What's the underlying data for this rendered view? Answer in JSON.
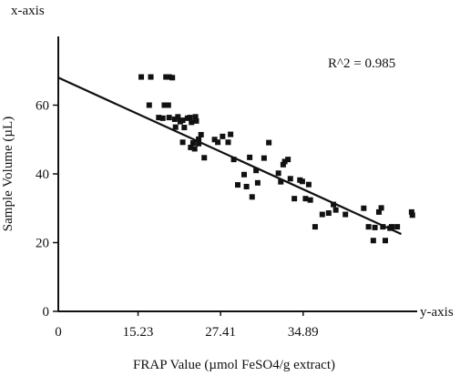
{
  "chart_data": {
    "type": "scatter",
    "title": "",
    "xlabel": "FRAP Value (µmol FeSO4/g extract)",
    "ylabel": "Sample Volume (µL)",
    "x_corner_label": "x-axis",
    "y_corner_label": "y-axis",
    "annotation": "R^2 = 0.985",
    "origin_label": "0",
    "x_tick_labels": [
      "15.23",
      "27.41",
      "34.89"
    ],
    "y_ticks": [
      0,
      20,
      40,
      60
    ],
    "xlim": [
      0,
      45
    ],
    "ylim": [
      0,
      80
    ],
    "grid": false,
    "legend": "none",
    "colors": {
      "points": "#111111",
      "line": "#111111",
      "axes": "#111111"
    },
    "trendline": {
      "x": [
        0,
        43
      ],
      "y": [
        68,
        22.5
      ]
    },
    "points": [
      [
        10.4,
        68.2
      ],
      [
        11.6,
        68.2
      ],
      [
        13.5,
        68.2
      ],
      [
        13.9,
        68.2
      ],
      [
        14.3,
        68.0
      ],
      [
        11.4,
        60.0
      ],
      [
        13.3,
        60.0
      ],
      [
        13.8,
        60.0
      ],
      [
        14.6,
        55.9
      ],
      [
        12.6,
        56.4
      ],
      [
        13.1,
        56.2
      ],
      [
        13.9,
        56.4
      ],
      [
        15.0,
        56.6
      ],
      [
        15.3,
        55.2
      ],
      [
        15.6,
        55.6
      ],
      [
        16.2,
        56.2
      ],
      [
        16.5,
        56.4
      ],
      [
        16.7,
        55.0
      ],
      [
        14.7,
        53.6
      ],
      [
        15.8,
        53.5
      ],
      [
        17.2,
        56.6
      ],
      [
        17.3,
        55.4
      ],
      [
        17.9,
        51.4
      ],
      [
        17.6,
        50.1
      ],
      [
        16.9,
        49.0
      ],
      [
        16.6,
        47.7
      ],
      [
        17.1,
        47.3
      ],
      [
        15.6,
        49.2
      ],
      [
        17.6,
        48.8
      ],
      [
        18.3,
        44.7
      ],
      [
        19.6,
        50.0
      ],
      [
        20.0,
        49.2
      ],
      [
        20.6,
        50.9
      ],
      [
        21.6,
        51.5
      ],
      [
        21.3,
        49.2
      ],
      [
        22.0,
        44.2
      ],
      [
        22.5,
        36.8
      ],
      [
        23.3,
        39.8
      ],
      [
        23.6,
        36.3
      ],
      [
        24.0,
        44.8
      ],
      [
        24.8,
        41.0
      ],
      [
        24.3,
        33.3
      ],
      [
        25.0,
        37.4
      ],
      [
        25.8,
        44.6
      ],
      [
        26.4,
        49.1
      ],
      [
        27.6,
        40.2
      ],
      [
        27.9,
        37.7
      ],
      [
        28.2,
        42.7
      ],
      [
        28.4,
        43.6
      ],
      [
        28.8,
        44.2
      ],
      [
        29.1,
        38.6
      ],
      [
        29.6,
        32.8
      ],
      [
        30.3,
        38.2
      ],
      [
        30.6,
        37.8
      ],
      [
        31.0,
        32.8
      ],
      [
        31.4,
        36.9
      ],
      [
        31.6,
        32.4
      ],
      [
        32.2,
        24.6
      ],
      [
        33.1,
        28.2
      ],
      [
        33.9,
        28.6
      ],
      [
        34.5,
        31.1
      ],
      [
        34.8,
        29.5
      ],
      [
        36.0,
        28.2
      ],
      [
        38.3,
        30.0
      ],
      [
        38.9,
        24.6
      ],
      [
        39.5,
        20.6
      ],
      [
        39.7,
        24.4
      ],
      [
        40.2,
        28.9
      ],
      [
        40.5,
        30.1
      ],
      [
        40.7,
        24.6
      ],
      [
        41.0,
        20.6
      ],
      [
        41.6,
        24.2
      ],
      [
        41.8,
        24.6
      ],
      [
        42.5,
        24.6
      ],
      [
        44.3,
        28.9
      ],
      [
        44.4,
        28.0
      ]
    ]
  }
}
